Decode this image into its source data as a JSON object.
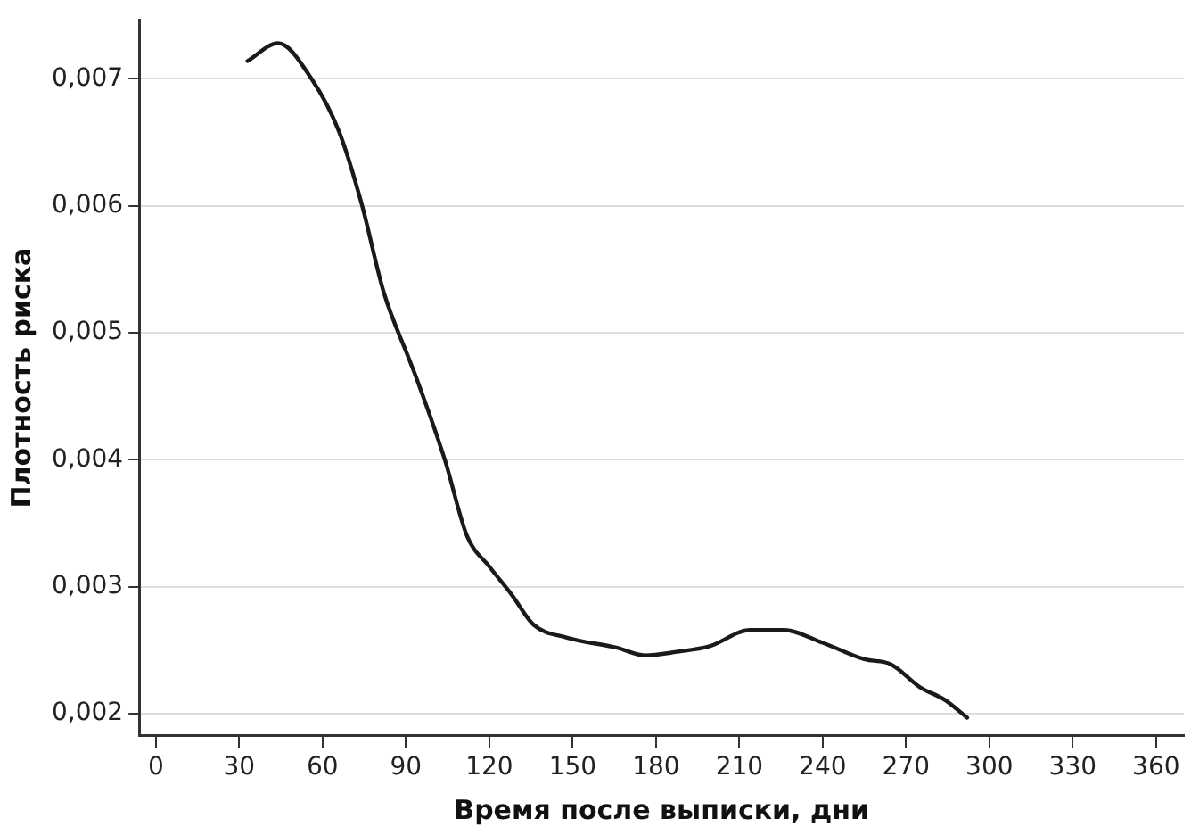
{
  "chart_data": {
    "type": "line",
    "xlabel": "Время после выписки, дни",
    "ylabel": "Плотность риска",
    "x": [
      33,
      44,
      56,
      66,
      74,
      82,
      91,
      93.5,
      104,
      112,
      120,
      128,
      136,
      148,
      166,
      176,
      188,
      199,
      214,
      226,
      240,
      255,
      264.6,
      275,
      284,
      292
    ],
    "series": [
      {
        "color": "#1a1a1a",
        "values": [
          0.00714,
          0.00728,
          0.007,
          0.00658,
          0.00602,
          0.00532,
          0.0048,
          0.00466,
          0.004,
          0.0034,
          0.00316,
          0.00294,
          0.0027,
          0.0026,
          0.00252,
          0.00246,
          0.00249,
          0.00253,
          0.00266,
          0.00266,
          0.00256,
          0.00243,
          0.00239,
          0.00221,
          0.00211,
          0.00197
        ]
      }
    ],
    "xlim": [
      -6,
      370
    ],
    "xticks": [
      0,
      30,
      60,
      90,
      120,
      150,
      180,
      210,
      240,
      270,
      300,
      330,
      360
    ],
    "ylim": [
      0.00183,
      0.00746
    ],
    "yticks": [
      {
        "value": 0.002,
        "label": "0,002"
      },
      {
        "value": 0.003,
        "label": "0,003"
      },
      {
        "value": 0.004,
        "label": "0,004"
      },
      {
        "value": 0.005,
        "label": "0,005"
      },
      {
        "value": 0.006,
        "label": "0,006"
      },
      {
        "value": 0.007,
        "label": "0,007"
      }
    ],
    "grid": "y",
    "legend": false,
    "marker": "none",
    "line_style": "solid"
  }
}
